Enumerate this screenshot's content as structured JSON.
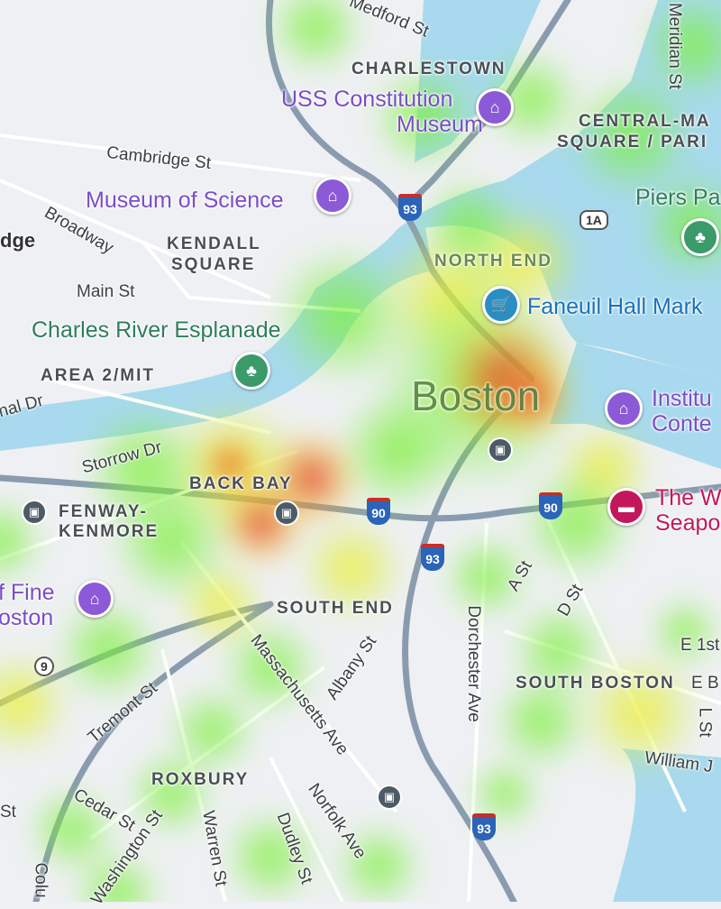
{
  "map": {
    "city_label": "Boston",
    "neighborhoods": [
      "CHARLESTOWN",
      "KENDALL",
      "SQUARE",
      "NORTH END",
      "AREA 2/MIT",
      "BACK BAY",
      "FENWAY-",
      "KENMORE",
      "SOUTH END",
      "SOUTH BOSTON",
      "ROXBURY",
      "CENTRAL-MA",
      "SQUARE / PARI",
      "dge"
    ],
    "streets": [
      "Medford St",
      "Meridian St",
      "Cambridge St",
      "Broadway",
      "Main St",
      "nal Dr",
      "Storrow Dr",
      "A St",
      "D St",
      "Dorchester Ave",
      "Albany St",
      "Massachusetts Ave",
      "Tremont St",
      "E 1st",
      "E B",
      "L St",
      "William J",
      "Cedar St",
      "Washington St",
      "Warren St",
      "Dudley St",
      "Norfolk Ave",
      "St",
      "Colu"
    ],
    "pois": [
      {
        "name": "USS Constitution",
        "name2": "Museum",
        "icon": "museum-icon",
        "color": "#7b4dc6"
      },
      {
        "name": "Museum of Science",
        "icon": "museum-icon",
        "color": "#7b4dc6"
      },
      {
        "name": "Charles River Esplanade",
        "icon": "tree-icon",
        "color": "#2e7d5b"
      },
      {
        "name": "Piers Pa",
        "icon": "tree-icon",
        "color": "#2e7d5b"
      },
      {
        "name": "Faneuil Hall Mark",
        "icon": "shopping-cart-icon",
        "color": "#1a73b8"
      },
      {
        "name": "Institu",
        "name2": "Conte",
        "icon": "museum-icon",
        "color": "#7b4dc6"
      },
      {
        "name": "The W",
        "name2": "Seapo",
        "icon": "hotel-icon",
        "color": "#c2185b"
      },
      {
        "name": "f Fine",
        "name2": "oston",
        "icon": "museum-icon",
        "color": "#7b4dc6"
      }
    ],
    "shields": {
      "i93": "93",
      "i90": "90",
      "r1a": "1A",
      "r9": "9"
    },
    "colors": {
      "water": "#a8d9ee",
      "land": "#eef0f3",
      "highway": "#8a9bb0",
      "heat_low": "#7cf03a",
      "heat_mid": "#f4f03a",
      "heat_high": "#e0302a"
    }
  }
}
